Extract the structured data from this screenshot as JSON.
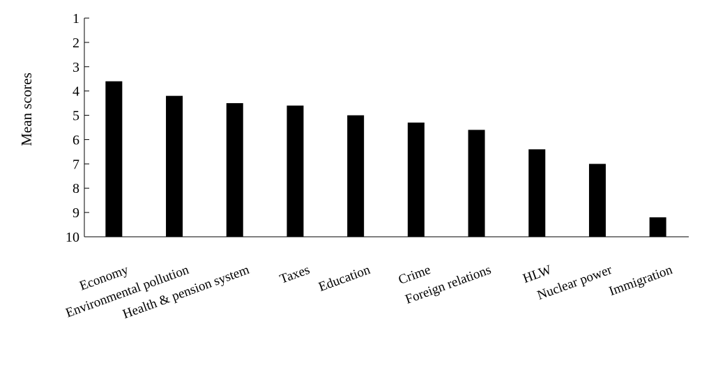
{
  "chart_data": {
    "type": "bar",
    "title": "",
    "xlabel": "",
    "ylabel": "Mean scores",
    "y_axis_inverted": true,
    "ylim": [
      1,
      10
    ],
    "yticks": [
      "1",
      "2",
      "3",
      "4",
      "5",
      "6",
      "7",
      "8",
      "9",
      "10"
    ],
    "grid": false,
    "bar_color": "#000000",
    "categories": [
      "Economy",
      "Environmental pollution",
      "Health & pension system",
      "Taxes",
      "Education",
      "Crime",
      "Foreign relations",
      "HLW",
      "Nuclear power",
      "Immigration"
    ],
    "values": [
      3.6,
      4.2,
      4.5,
      4.6,
      5.0,
      5.3,
      5.6,
      6.4,
      7.0,
      9.2
    ]
  }
}
